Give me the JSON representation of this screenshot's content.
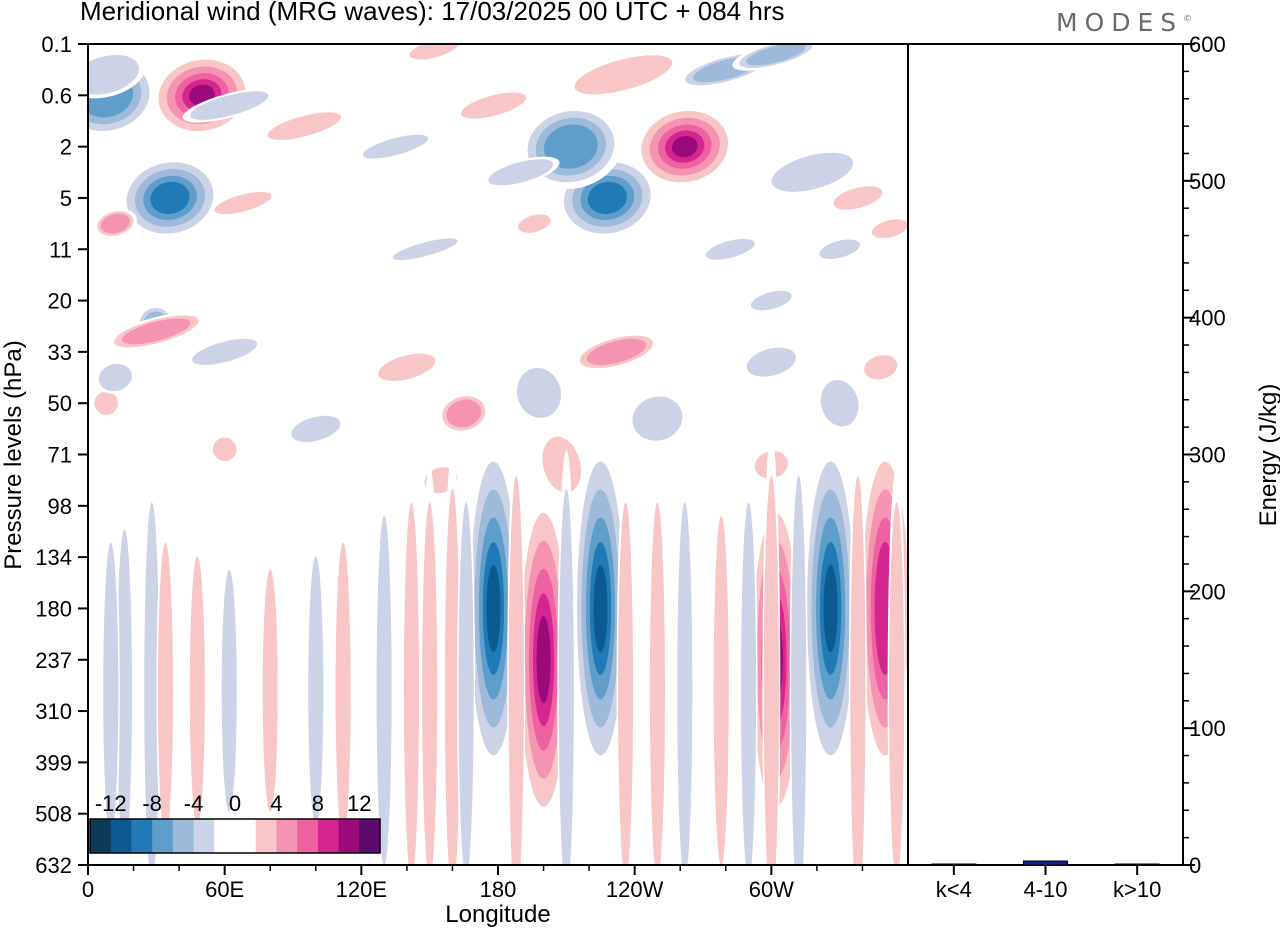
{
  "header": {
    "title": "Meridional wind (MRG waves):  17/03/2025  00 UTC  + 084 hrs",
    "brand": "MODES",
    "brand_mark": "©"
  },
  "colors": {
    "levels": [
      "#0d3a57",
      "#0c5a8f",
      "#2179b5",
      "#5f9dcb",
      "#9dbadb",
      "#cdd3e6",
      "#ffffff",
      "#ffffff",
      "#f8c6c6",
      "#f594b2",
      "#ee62a2",
      "#d5258f",
      "#9a0a78",
      "#5c0a6e"
    ],
    "bar": "#1a1a9c",
    "axis": "#000000"
  },
  "chart_data": [
    {
      "type": "heatmap",
      "title": "Meridional wind (MRG waves):  17/03/2025  00 UTC  + 084 hrs",
      "xlabel": "Longitude",
      "ylabel": "Pressure levels (hPa)",
      "x_ticks": [
        "0",
        "60E",
        "120E",
        "180",
        "120W",
        "60W"
      ],
      "x_tick_values": [
        0,
        60,
        120,
        180,
        240,
        300
      ],
      "xlim": [
        0,
        360
      ],
      "y_ticks": [
        "0.1",
        "0.6",
        "2",
        "5",
        "11",
        "20",
        "33",
        "50",
        "71",
        "98",
        "134",
        "180",
        "237",
        "310",
        "399",
        "508",
        "632"
      ],
      "colorbar": {
        "labels": [
          "-12",
          "-8",
          "-4",
          "0",
          "4",
          "8",
          "12"
        ],
        "label_values": [
          -12,
          -8,
          -4,
          0,
          4,
          8,
          12
        ],
        "levels": [
          -14,
          -12,
          -10,
          -8,
          -6,
          -4,
          -2,
          0,
          2,
          4,
          6,
          8,
          10,
          12,
          14
        ]
      },
      "features": [
        {
          "lon": 178,
          "level": "180",
          "value": -13
        },
        {
          "lon": 200,
          "level": "237",
          "value": 11
        },
        {
          "lon": 225,
          "level": "180",
          "value": -11
        },
        {
          "lon": 302,
          "level": "237",
          "value": 12
        },
        {
          "lon": 326,
          "level": "180",
          "value": -13
        },
        {
          "lon": 350,
          "level": "180",
          "value": 9
        },
        {
          "lon": 262,
          "level": "2",
          "value": 13
        },
        {
          "lon": 50,
          "level": "0.6",
          "value": 11
        },
        {
          "lon": 36,
          "level": "5",
          "value": -10
        },
        {
          "lon": 228,
          "level": "5",
          "value": -9
        },
        {
          "lon": 8,
          "level": "0.6",
          "value": -7
        },
        {
          "lon": 212,
          "level": "2",
          "value": -8
        }
      ]
    },
    {
      "type": "bar",
      "categories": [
        "k<4",
        "4-10",
        "k>10"
      ],
      "values": [
        0,
        2.5,
        0
      ],
      "ylabel": "Energy (J/kg)",
      "ylim": [
        0,
        600
      ],
      "y_ticks": [
        "0",
        "100",
        "200",
        "300",
        "400",
        "500",
        "600"
      ],
      "y_tick_values": [
        0,
        100,
        200,
        300,
        400,
        500,
        600
      ]
    }
  ]
}
